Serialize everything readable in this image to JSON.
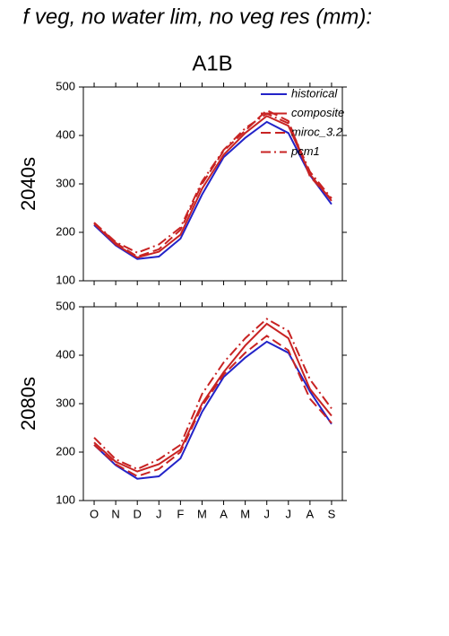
{
  "title": "f veg, no water lim, no veg res (mm):",
  "subtitle": "A1B",
  "chart_data": [
    {
      "type": "line",
      "ylabel": "2040s",
      "ylim": [
        100,
        500
      ],
      "yticks": [
        100,
        200,
        300,
        400,
        500
      ],
      "legend": "upper right",
      "series": [
        {
          "name": "historical",
          "color": "#2323c8",
          "linestyle": "solid",
          "values": [
            215,
            173,
            145,
            150,
            187,
            278,
            355,
            395,
            428,
            405,
            318,
            258
          ]
        },
        {
          "name": "composite",
          "color": "#c82323",
          "linestyle": "solid",
          "values": [
            218,
            175,
            148,
            160,
            195,
            290,
            360,
            405,
            440,
            420,
            320,
            265
          ]
        },
        {
          "name": "miroc_3.2",
          "color": "#c82323",
          "linestyle": "dashed",
          "values": [
            220,
            178,
            150,
            165,
            205,
            300,
            368,
            410,
            452,
            430,
            315,
            268
          ]
        },
        {
          "name": "pcm1",
          "color": "#c82323",
          "linestyle": "dashdot",
          "values": [
            220,
            180,
            158,
            175,
            210,
            305,
            370,
            415,
            445,
            425,
            325,
            270
          ]
        }
      ]
    },
    {
      "type": "line",
      "ylabel": "2080s",
      "ylim": [
        100,
        500
      ],
      "yticks": [
        100,
        200,
        300,
        400,
        500
      ],
      "categories": [
        "O",
        "N",
        "D",
        "J",
        "F",
        "M",
        "A",
        "M",
        "J",
        "J",
        "A",
        "S"
      ],
      "series": [
        {
          "name": "historical",
          "color": "#2323c8",
          "linestyle": "solid",
          "values": [
            215,
            173,
            145,
            150,
            187,
            283,
            355,
            395,
            428,
            405,
            325,
            258
          ]
        },
        {
          "name": "composite",
          "color": "#c82323",
          "linestyle": "solid",
          "values": [
            220,
            180,
            160,
            175,
            205,
            300,
            365,
            420,
            465,
            435,
            330,
            275
          ]
        },
        {
          "name": "miroc_3.2",
          "color": "#c82323",
          "linestyle": "dashed",
          "values": [
            215,
            175,
            150,
            165,
            200,
            295,
            360,
            405,
            440,
            410,
            310,
            260
          ]
        },
        {
          "name": "pcm1",
          "color": "#c82323",
          "linestyle": "dashdot",
          "values": [
            230,
            185,
            165,
            185,
            215,
            320,
            385,
            435,
            475,
            450,
            350,
            290
          ]
        }
      ]
    }
  ]
}
